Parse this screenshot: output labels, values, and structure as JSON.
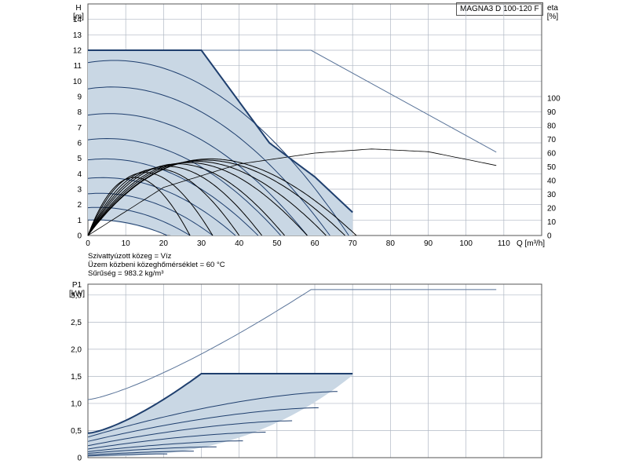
{
  "pump_model": "MAGNA3 D 100-120 F",
  "medium": {
    "line1": "Szivattyúzott közeg = Víz",
    "line2": "Üzem közbeni közeghőmérséklet = 60 °C",
    "line3": "Sűrűség = 983.2 kg/m³"
  },
  "chart_data": [
    {
      "type": "line",
      "name": "head",
      "ylabel": "H",
      "yunit": "[m]",
      "y2label": "eta",
      "y2unit": "[%]",
      "xlabel": "Q [m³/h]",
      "xlim": [
        0,
        120
      ],
      "ylim": [
        0,
        15
      ],
      "y2lim": [
        0,
        100
      ],
      "x_ticks": [
        0,
        10,
        20,
        30,
        40,
        50,
        60,
        70,
        80,
        90,
        100,
        110
      ],
      "y_ticks": [
        0,
        1,
        2,
        3,
        4,
        5,
        6,
        7,
        8,
        9,
        10,
        11,
        12,
        13,
        14
      ],
      "y2_ticks": [
        0,
        10,
        20,
        30,
        40,
        50,
        60,
        70,
        80,
        90,
        100
      ],
      "max_curve": {
        "x": [
          0,
          30,
          48,
          60,
          70
        ],
        "y": [
          12,
          12,
          6,
          3.8,
          1.5
        ]
      },
      "max_curve_extended": {
        "x": [
          0,
          59,
          108
        ],
        "y": [
          12,
          12,
          5.4
        ]
      },
      "speed_curves": [
        {
          "qmax": 69,
          "h0": 11.2,
          "kind": "head"
        },
        {
          "qmax": 64,
          "h0": 9.5,
          "kind": "head"
        },
        {
          "qmax": 58,
          "h0": 7.8,
          "kind": "head"
        },
        {
          "qmax": 51,
          "h0": 6.2,
          "kind": "head"
        },
        {
          "qmax": 45,
          "h0": 4.9,
          "kind": "head"
        },
        {
          "qmax": 39,
          "h0": 3.7,
          "kind": "head"
        },
        {
          "qmax": 33,
          "h0": 2.7,
          "kind": "head"
        },
        {
          "qmax": 27,
          "h0": 1.8,
          "kind": "head"
        },
        {
          "qmax": 21,
          "h0": 1.0,
          "kind": "head"
        }
      ],
      "efficiency_curves": [
        {
          "qmax": 71,
          "eta_max": 62
        },
        {
          "qmax": 68,
          "eta_max": 61
        },
        {
          "qmax": 63,
          "eta_max": 60
        },
        {
          "qmax": 58,
          "eta_max": 59
        },
        {
          "qmax": 52,
          "eta_max": 58
        },
        {
          "qmax": 46,
          "eta_max": 56
        },
        {
          "qmax": 40,
          "eta_max": 54
        },
        {
          "qmax": 33,
          "eta_max": 51
        },
        {
          "qmax": 27,
          "eta_max": 47
        }
      ],
      "efficiency_extended": {
        "x": [
          0,
          20,
          40,
          60,
          75,
          90,
          108
        ],
        "y": [
          0,
          35,
          52,
          60,
          63,
          61,
          51
        ]
      }
    },
    {
      "type": "line",
      "name": "power",
      "ylabel": "P1",
      "yunit": "[kW]",
      "xlim": [
        0,
        120
      ],
      "ylim": [
        0,
        3.2
      ],
      "y_ticks": [
        "0",
        "0,5",
        "1,0",
        "1,5",
        "2,0",
        "2,5",
        "3,0"
      ],
      "y_tick_values": [
        0,
        0.5,
        1.0,
        1.5,
        2.0,
        2.5,
        3.0
      ],
      "max_power": {
        "x": [
          0,
          30,
          70
        ],
        "y": [
          0.45,
          1.55,
          1.55
        ]
      },
      "extended_power": {
        "x": [
          0,
          59,
          108
        ],
        "y": [
          1.07,
          3.1,
          3.1
        ]
      },
      "power_curves": [
        {
          "qmax": 66,
          "p0": 0.38,
          "pmax": 1.22
        },
        {
          "qmax": 61,
          "p0": 0.3,
          "pmax": 0.92
        },
        {
          "qmax": 54,
          "p0": 0.22,
          "pmax": 0.68
        },
        {
          "qmax": 47,
          "p0": 0.16,
          "pmax": 0.47
        },
        {
          "qmax": 41,
          "p0": 0.11,
          "pmax": 0.31
        },
        {
          "qmax": 34,
          "p0": 0.08,
          "pmax": 0.2
        },
        {
          "qmax": 28,
          "p0": 0.05,
          "pmax": 0.12
        },
        {
          "qmax": 21,
          "p0": 0.03,
          "pmax": 0.07
        }
      ]
    }
  ],
  "colors": {
    "fill": "#c9d7e4",
    "curve": "#1f3f6e",
    "envelope": "#1f3f6e",
    "eta": "#000000",
    "extended": "#5a7499",
    "grid": "#b0b8c4"
  }
}
